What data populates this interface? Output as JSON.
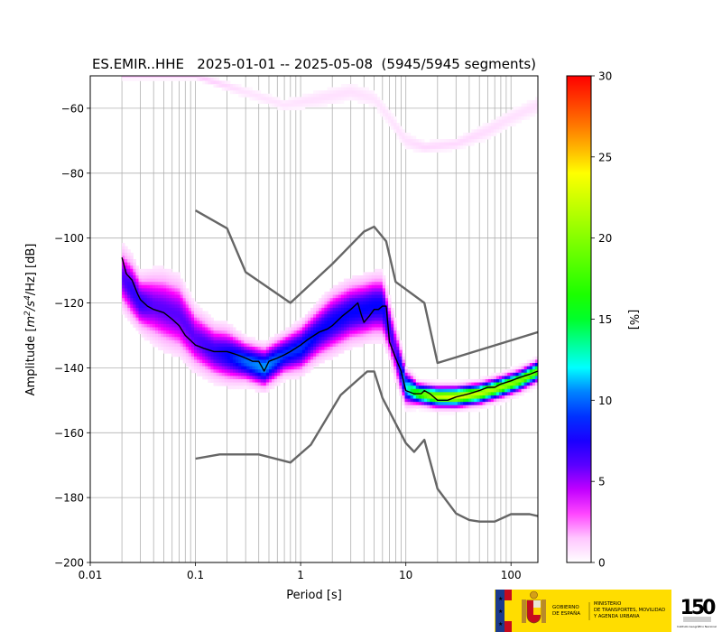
{
  "chart_data": {
    "type": "heatmap",
    "title": "ES.EMIR..HHE   2025-01-01 -- 2025-05-08  (5945/5945 segments)",
    "xlabel": "Period [s]",
    "ylabel_pre": "Amplitude [",
    "ylabel_m": "m",
    "ylabel_sup2": "2",
    "ylabel_s": "/s",
    "ylabel_sup4": "4",
    "ylabel_post": "/Hz] [dB]",
    "x_scale": "log",
    "xlim": [
      0.01,
      180
    ],
    "ylim": [
      -200,
      -50
    ],
    "x_ticks": [
      {
        "value": 0.01,
        "label": "0.01"
      },
      {
        "value": 0.1,
        "label": "0.1"
      },
      {
        "value": 1,
        "label": "1"
      },
      {
        "value": 10,
        "label": "10"
      },
      {
        "value": 100,
        "label": "100"
      }
    ],
    "y_ticks": [
      {
        "value": -200,
        "label": "−200"
      },
      {
        "value": -180,
        "label": "−180"
      },
      {
        "value": -160,
        "label": "−160"
      },
      {
        "value": -140,
        "label": "−140"
      },
      {
        "value": -120,
        "label": "−120"
      },
      {
        "value": -100,
        "label": "−100"
      },
      {
        "value": -80,
        "label": "−80"
      },
      {
        "value": -60,
        "label": "−60"
      }
    ],
    "grid": true,
    "colorbar": {
      "label": "[%]",
      "min": 0,
      "max": 30,
      "colormap": "pqlx",
      "ticks": [
        {
          "value": 0,
          "label": "0"
        },
        {
          "value": 5,
          "label": "5"
        },
        {
          "value": 10,
          "label": "10"
        },
        {
          "value": 15,
          "label": "15"
        },
        {
          "value": 20,
          "label": "20"
        },
        {
          "value": 25,
          "label": "25"
        },
        {
          "value": 30,
          "label": "30"
        }
      ]
    },
    "density_band": {
      "period": [
        0.02,
        0.025,
        0.03,
        0.04,
        0.05,
        0.07,
        0.1,
        0.15,
        0.2,
        0.3,
        0.45,
        0.7,
        1.0,
        1.5,
        2.0,
        3.0,
        4.0,
        5.0,
        6.0,
        7.0,
        8.0,
        10.0,
        13.0,
        20.0,
        30.0,
        50.0,
        80.0,
        120.0,
        180.0
      ],
      "center": [
        -112,
        -116,
        -120,
        -121,
        -122,
        -124,
        -131,
        -135,
        -136,
        -138,
        -140,
        -136,
        -134,
        -129,
        -126,
        -123,
        -122,
        -121,
        -121,
        -128,
        -135,
        -146,
        -148,
        -149,
        -149,
        -148,
        -146,
        -144,
        -141
      ],
      "halfwidth": [
        9,
        9,
        8,
        10,
        11,
        11,
        9,
        8,
        8,
        6,
        6,
        6,
        7,
        8,
        9,
        9,
        9,
        9,
        9,
        8,
        8,
        5,
        3,
        3,
        3,
        3,
        3,
        3,
        3
      ],
      "peak_percent": [
        6,
        7,
        7,
        6,
        6,
        6,
        6,
        7,
        8,
        10,
        11,
        9,
        9,
        8,
        8,
        8,
        8,
        8,
        8,
        7,
        6,
        12,
        18,
        22,
        23,
        22,
        21,
        20,
        19
      ]
    },
    "faint_band": {
      "period": [
        0.02,
        0.04,
        0.1,
        0.3,
        0.7,
        1.5,
        3.0,
        5.0,
        7.0,
        10.0,
        15.0,
        30.0,
        60.0,
        100.0,
        180.0
      ],
      "center": [
        -50,
        -50,
        -50,
        -55,
        -59,
        -57,
        -55,
        -57,
        -63,
        -70,
        -72,
        -71,
        -67,
        -63,
        -59
      ],
      "halfwidth": [
        1,
        1,
        1,
        2,
        2,
        3,
        3,
        3,
        3,
        3,
        2,
        2,
        3,
        3,
        3
      ],
      "peak_percent": [
        1.5,
        1.5,
        1.5,
        0.7,
        0.7,
        0.8,
        0.8,
        0.7,
        0.7,
        0.8,
        1.0,
        1.0,
        0.9,
        0.8,
        0.8
      ]
    },
    "series": [
      {
        "type": "line",
        "style": "black",
        "x": [
          0.02,
          0.022,
          0.025,
          0.028,
          0.03,
          0.035,
          0.04,
          0.05,
          0.06,
          0.07,
          0.08,
          0.1,
          0.12,
          0.15,
          0.2,
          0.25,
          0.3,
          0.35,
          0.4,
          0.45,
          0.5,
          0.6,
          0.7,
          0.8,
          1.0,
          1.2,
          1.5,
          1.8,
          2.0,
          2.5,
          3.0,
          3.5,
          3.8,
          4.0,
          4.5,
          5.0,
          5.5,
          6.0,
          6.5,
          7.0,
          8.0,
          9.0,
          10.0,
          12.0,
          14.0,
          15.0,
          17.0,
          20.0,
          25.0,
          30.0,
          40.0,
          50.0,
          60.0,
          70.0,
          80.0,
          100.0,
          120.0,
          150.0,
          180.0
        ],
        "y": [
          -106,
          -111,
          -113,
          -117,
          -119,
          -121,
          -122,
          -123,
          -125,
          -127,
          -130,
          -133,
          -134,
          -135,
          -135,
          -136,
          -137,
          -138,
          -138,
          -141,
          -138,
          -137,
          -136,
          -135,
          -133,
          -131,
          -129,
          -128,
          -127,
          -124,
          -122,
          -120,
          -124,
          -126,
          -124,
          -122,
          -122,
          -121,
          -121,
          -132,
          -137,
          -141,
          -147,
          -148,
          -148,
          -147,
          -148,
          -150,
          -150,
          -149,
          -148,
          -147,
          -146,
          -146,
          -145,
          -144,
          -143,
          -142,
          -141
        ]
      },
      {
        "type": "line",
        "style": "gray",
        "x": [
          0.1,
          0.2,
          0.3,
          0.8,
          2.0,
          4.0,
          5.0,
          6.5,
          8.0,
          15.0,
          20.0,
          180.0
        ],
        "y": [
          -91.5,
          -97,
          -110.5,
          -120,
          -108,
          -98,
          -96.5,
          -101,
          -113.5,
          -120,
          -138.5,
          -129
        ]
      },
      {
        "type": "line",
        "style": "gray",
        "x": [
          0.1,
          0.17,
          0.4,
          0.8,
          1.25,
          2.4,
          4.3,
          5.0,
          6.0,
          10.0,
          12.0,
          15.0,
          20.0,
          30.0,
          40.0,
          50.0,
          70.0,
          100.0,
          150.0,
          180.0
        ],
        "y": [
          -168,
          -166.7,
          -166.7,
          -169.2,
          -163.7,
          -148.4,
          -141.1,
          -141.1,
          -149.3,
          -163.2,
          -165.9,
          -162.2,
          -177.3,
          -184.9,
          -186.9,
          -187.4,
          -187.4,
          -185.1,
          -185.1,
          -185.7
        ]
      }
    ]
  },
  "footer": {
    "gov_line1": "GOBIERNO",
    "gov_line2": "DE ESPAÑA",
    "ministry_line1": "MINISTERIO",
    "ministry_line2": "DE TRANSPORTES, MOVILIDAD",
    "ministry_line3": "Y AGENDA URBANA",
    "anniv_number": "150",
    "anniv_caption": "Instituto Geográfico Nacional",
    "colors": {
      "gov_yellow": "#ffdd00",
      "spain_red": "#c60b1e",
      "eu_blue": "#1b3a8c"
    }
  }
}
